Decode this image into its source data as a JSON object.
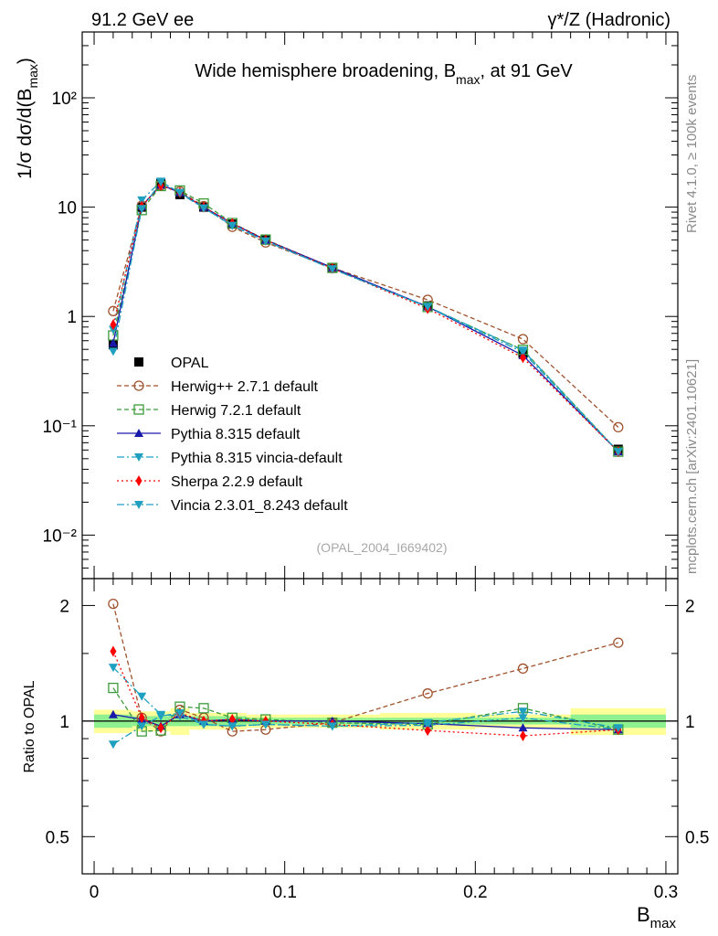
{
  "header": {
    "left": "91.2 GeV ee",
    "right": "γ*/Z (Hadronic)"
  },
  "side_labels": {
    "rivet": "Rivet 4.1.0, ≥ 100k events",
    "mcplots": "mcplots.cern.ch [arXiv:2401.10621]"
  },
  "chart_data": [
    {
      "type": "line",
      "title": "Wide hemisphere broadening, B_max, at 91 GeV",
      "title_parts": {
        "main": "Wide hemisphere broadening, B",
        "sub": "max",
        "tail": ", at 91 GeV"
      },
      "ylabel_parts": {
        "main": "1/σ  dσ/d(B",
        "sub": "max",
        "tail": ")"
      },
      "watermark": "(OPAL_2004_I669402)",
      "yscale": "log",
      "xlim": [
        0,
        0.3
      ],
      "ylim": [
        0.004,
        400
      ],
      "y_tick_labels": [
        "10⁻²",
        "10⁻¹",
        "1",
        "10",
        "10²"
      ],
      "y_tick_values": [
        0.01,
        0.1,
        1,
        10,
        100
      ],
      "legend_position": "middle-left",
      "x": [
        0.01,
        0.025,
        0.035,
        0.045,
        0.0575,
        0.0725,
        0.09,
        0.125,
        0.175,
        0.225,
        0.275
      ],
      "series": [
        {
          "name": "OPAL",
          "color": "#000000",
          "marker": "square-filled",
          "line": "none",
          "values": [
            0.55,
            10.0,
            16.5,
            13.0,
            10.0,
            7.0,
            5.0,
            2.8,
            1.25,
            0.46,
            0.061
          ]
        },
        {
          "name": "Herwig++ 2.7.1 default",
          "color": "#a0522d",
          "marker": "circle-open",
          "line": "dashed",
          "values": [
            1.12,
            10.3,
            15.8,
            13.9,
            10.2,
            6.6,
            4.75,
            2.78,
            1.42,
            0.62,
            0.097
          ]
        },
        {
          "name": "Herwig 7.2.1 default",
          "color": "#3c9c3c",
          "marker": "square-open",
          "line": "dashed",
          "values": [
            0.67,
            9.4,
            15.6,
            14.2,
            10.8,
            7.15,
            5.05,
            2.78,
            1.22,
            0.495,
            0.058
          ]
        },
        {
          "name": "Pythia 8.315 default",
          "color": "#1a1aaa",
          "marker": "triangle-up",
          "line": "solid",
          "values": [
            0.57,
            10.2,
            16.0,
            13.6,
            10.0,
            7.1,
            5.0,
            2.8,
            1.23,
            0.44,
            0.058
          ]
        },
        {
          "name": "Pythia 8.315 vincia-default",
          "color": "#1fa0c0",
          "marker": "triangle-down",
          "line": "dashdot",
          "values": [
            0.76,
            11.6,
            17.2,
            13.4,
            9.8,
            6.8,
            4.9,
            2.72,
            1.22,
            0.47,
            0.058
          ]
        },
        {
          "name": "Sherpa 2.2.9 default",
          "color": "#ff0000",
          "marker": "diamond",
          "line": "dotted",
          "values": [
            0.84,
            10.2,
            15.8,
            13.6,
            10.0,
            7.1,
            5.0,
            2.75,
            1.18,
            0.42,
            0.058
          ]
        },
        {
          "name": "Vincia 2.3.01_8.243 default",
          "color": "#1fa0c0",
          "marker": "triangle-down",
          "line": "dashdot",
          "values": [
            0.48,
            9.7,
            17.0,
            13.6,
            9.8,
            6.8,
            4.9,
            2.72,
            1.23,
            0.49,
            0.058
          ]
        }
      ]
    },
    {
      "type": "line",
      "ylabel": "Ratio to OPAL",
      "xlabel_parts": {
        "main": "B",
        "sub": "max"
      },
      "yscale": "log",
      "xlim": [
        0,
        0.3
      ],
      "ylim": [
        0.4,
        2.35
      ],
      "y_tick_labels": [
        "0.5",
        "1",
        "2"
      ],
      "y_tick_values": [
        0.5,
        1,
        2
      ],
      "x_tick_labels": [
        "0",
        "0.1",
        "0.2",
        "0.3"
      ],
      "x_tick_values": [
        0,
        0.1,
        0.2,
        0.3
      ],
      "uncertainty_bands": {
        "x_edges": [
          0.0,
          0.02,
          0.03,
          0.04,
          0.05,
          0.065,
          0.08,
          0.1,
          0.15,
          0.2,
          0.25,
          0.3
        ],
        "stat_lo": [
          0.96,
          0.97,
          0.97,
          0.97,
          0.97,
          0.97,
          0.98,
          0.98,
          0.98,
          0.98,
          0.96
        ],
        "stat_hi": [
          1.04,
          1.03,
          1.03,
          1.03,
          1.03,
          1.03,
          1.02,
          1.02,
          1.02,
          1.02,
          1.04
        ],
        "total_lo": [
          0.93,
          0.94,
          0.94,
          0.92,
          0.95,
          0.95,
          0.96,
          0.96,
          0.95,
          0.96,
          0.92
        ],
        "total_hi": [
          1.07,
          1.06,
          1.06,
          1.08,
          1.05,
          1.05,
          1.04,
          1.04,
          1.05,
          1.04,
          1.08
        ],
        "stat_color": "#8ff08f",
        "total_color": "#ffff99"
      },
      "x": [
        0.01,
        0.025,
        0.035,
        0.045,
        0.0575,
        0.0725,
        0.09,
        0.125,
        0.175,
        0.225,
        0.275
      ],
      "series": [
        {
          "name": "Herwig++ 2.7.1 default",
          "color": "#a0522d",
          "marker": "circle-open",
          "line": "dashed",
          "values": [
            2.02,
            1.02,
            0.94,
            1.07,
            1.02,
            0.94,
            0.95,
            0.99,
            1.18,
            1.37,
            1.6
          ]
        },
        {
          "name": "Herwig 7.2.1 default",
          "color": "#3c9c3c",
          "marker": "square-open",
          "line": "dashed",
          "values": [
            1.22,
            0.94,
            0.945,
            1.09,
            1.08,
            1.02,
            1.01,
            0.99,
            0.98,
            1.08,
            0.95
          ]
        },
        {
          "name": "Pythia 8.315 default",
          "color": "#1a1aaa",
          "marker": "triangle-up",
          "line": "solid",
          "values": [
            1.04,
            1.01,
            0.97,
            1.04,
            1.0,
            1.01,
            1.0,
            1.0,
            0.985,
            0.96,
            0.95
          ]
        },
        {
          "name": "Pythia 8.315 vincia-default",
          "color": "#1fa0c0",
          "marker": "triangle-down",
          "line": "dashdot",
          "values": [
            1.38,
            1.16,
            1.04,
            1.03,
            0.98,
            0.97,
            0.98,
            0.97,
            0.975,
            1.02,
            0.95
          ]
        },
        {
          "name": "Sherpa 2.2.9 default",
          "color": "#ff0000",
          "marker": "diamond",
          "line": "dotted",
          "values": [
            1.52,
            1.02,
            0.96,
            1.05,
            1.0,
            1.01,
            1.0,
            0.98,
            0.945,
            0.915,
            0.95
          ]
        },
        {
          "name": "Vincia 2.3.01_8.243 default",
          "color": "#1fa0c0",
          "marker": "triangle-down",
          "line": "dashdot",
          "values": [
            0.87,
            0.97,
            1.03,
            1.05,
            0.98,
            0.97,
            0.98,
            0.97,
            0.99,
            1.06,
            0.96
          ]
        }
      ]
    }
  ]
}
